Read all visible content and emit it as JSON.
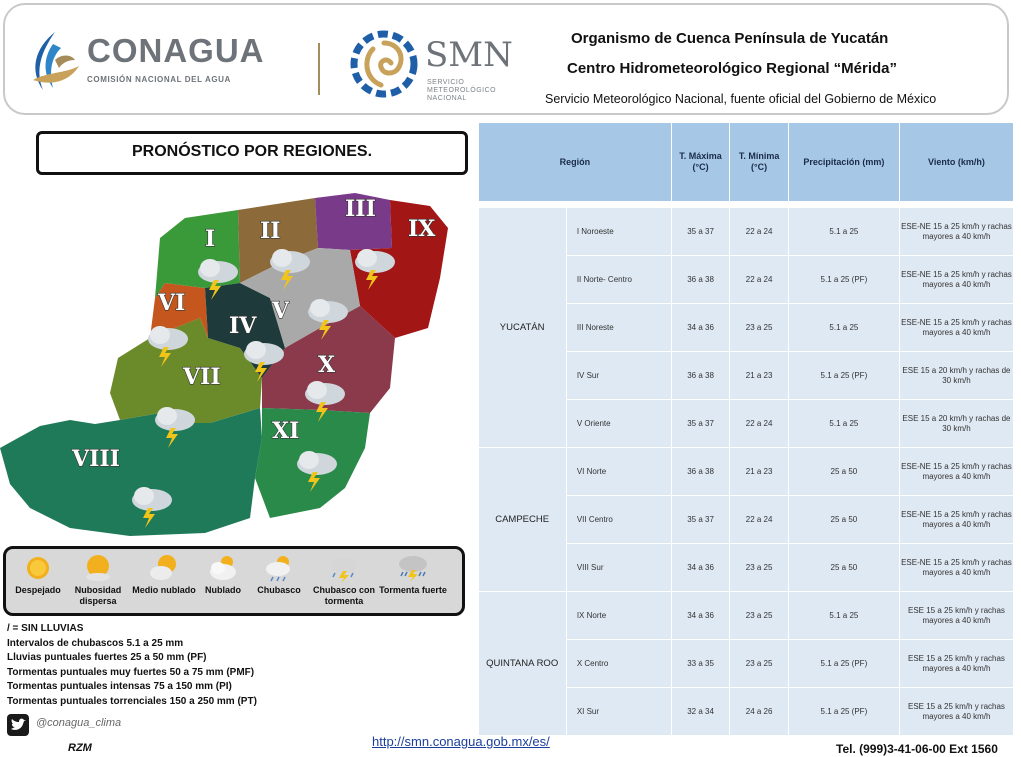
{
  "header": {
    "conagua_name": "CONAGUA",
    "conagua_subtitle": "COMISIÓN NACIONAL DEL AGUA",
    "smn_name": "SMN",
    "smn_subtitle_1": "SERVICIO",
    "smn_subtitle_2": "METEOROLÓGICO",
    "smn_subtitle_3": "NACIONAL",
    "line1": "Organismo de Cuenca Península de Yucatán",
    "line2": "Centro Hidrometeorológico Regional “Mérida”",
    "line3": "Servicio Meteorológico Nacional, fuente oficial del Gobierno de México"
  },
  "title": "PRONÓSTICO POR REGIONES.",
  "map": {
    "labels": [
      "I",
      "II",
      "III",
      "IV",
      "V",
      "VI",
      "VII",
      "VIII",
      "IX",
      "X",
      "XI"
    ],
    "colors": {
      "I": "#3a9a3a",
      "II": "#8c6a3a",
      "III": "#7a3a8a",
      "IV": "#1f3a3a",
      "V": "#a9a9a9",
      "VI": "#c4561e",
      "VII": "#6b8a2a",
      "VIII": "#1f7a5a",
      "IX": "#a31616",
      "X": "#8a3a4a",
      "XI": "#2a8a4a"
    }
  },
  "legend": {
    "items": [
      {
        "label": "Despejado",
        "icon": "sun-icon"
      },
      {
        "label": "Nubosidad dispersa",
        "icon": "sun-cloud-icon"
      },
      {
        "label": "Medio nublado",
        "icon": "partly-cloudy-icon"
      },
      {
        "label": "Nublado",
        "icon": "cloudy-icon"
      },
      {
        "label": "Chubasco",
        "icon": "shower-icon"
      },
      {
        "label": "Chubasco con tormenta",
        "icon": "storm-shower-icon"
      },
      {
        "label": "Tormenta fuerte",
        "icon": "heavy-storm-icon"
      }
    ]
  },
  "notes": [
    " / = SIN LLUVIAS",
    "Intervalos de chubascos 5.1 a 25 mm",
    "Lluvias puntuales fuertes 25 a 50 mm (PF)",
    "Tormentas puntuales muy fuertes 50 a 75 mm (PMF)",
    "Tormentas puntuales intensas 75 a 150 mm (PI)",
    "Tormentas puntuales torrenciales 150 a 250 mm (PT)"
  ],
  "table": {
    "headers": {
      "region": "Región",
      "tmax": "T. Máxima (°C)",
      "tmin": "T. Mínima (°C)",
      "precip": "Precipitación (mm)",
      "wind": "Viento (km/h)"
    },
    "states": [
      {
        "name": "YUCATÁN",
        "rows": [
          {
            "region": "I   Noroeste",
            "tmax": "35 a 37",
            "tmin": "22 a 24",
            "precip": "5.1 a 25",
            "wind": "ESE-NE 15 a 25 km/h y rachas mayores a 40 km/h"
          },
          {
            "region": "II  Norte- Centro",
            "tmax": "36 a 38",
            "tmin": "22 a 24",
            "precip": "5.1 a 25 (PF)",
            "wind": "ESE-NE 15 a 25 km/h y rachas mayores a 40 km/h"
          },
          {
            "region": "III  Noreste",
            "tmax": "34 a 36",
            "tmin": "23 a 25",
            "precip": "5.1 a 25",
            "wind": "ESE-NE 15 a 25 km/h y rachas mayores a 40 km/h"
          },
          {
            "region": "IV  Sur",
            "tmax": "36 a 38",
            "tmin": "21 a 23",
            "precip": "5.1 a 25 (PF)",
            "wind": "ESE 15 a 20 km/h y rachas de 30 km/h"
          },
          {
            "region": "V  Oriente",
            "tmax": "35 a 37",
            "tmin": "22 a 24",
            "precip": "5.1 a 25",
            "wind": "ESE 15 a 20 km/h y rachas de 30 km/h"
          }
        ]
      },
      {
        "name": "CAMPECHE",
        "rows": [
          {
            "region": "VI  Norte",
            "tmax": "36 a 38",
            "tmin": "21 a 23",
            "precip": "25 a 50",
            "wind": "ESE-NE 15 a 25 km/h y rachas mayores a 40 km/h"
          },
          {
            "region": "VII  Centro",
            "tmax": "35 a 37",
            "tmin": "22 a 24",
            "precip": "25 a 50",
            "wind": "ESE-NE 15 a 25 km/h y rachas mayores a 40 km/h"
          },
          {
            "region": "VIII  Sur",
            "tmax": "34 a 36",
            "tmin": "23 a 25",
            "precip": "25 a 50",
            "wind": "ESE-NE 15 a 25 km/h y rachas mayores a 40 km/h"
          }
        ]
      },
      {
        "name": "QUINTANA ROO",
        "rows": [
          {
            "region": "IX  Norte",
            "tmax": "34 a 36",
            "tmin": "23 a 25",
            "precip": "5.1 a 25",
            "wind": "ESE 15 a 25 km/h y rachas mayores a 40 km/h"
          },
          {
            "region": "X  Centro",
            "tmax": "33 a 35",
            "tmin": "23 a 25",
            "precip": "5.1 a 25 (PF)",
            "wind": "ESE 15 a 25 km/h y rachas mayores a 40 km/h"
          },
          {
            "region": "XI  Sur",
            "tmax": "32 a 34",
            "tmin": "24 a 26",
            "precip": "5.1 a 25 (PF)",
            "wind": "ESE 15 a 25 km/h y rachas mayores a 40 km/h"
          }
        ]
      }
    ]
  },
  "footer": {
    "handle": "@conagua_clima",
    "initials": "RZM",
    "url": "http://smn.conagua.gob.mx/es/",
    "phone": "Tel. (999)3-41-06-00 Ext 1560"
  }
}
